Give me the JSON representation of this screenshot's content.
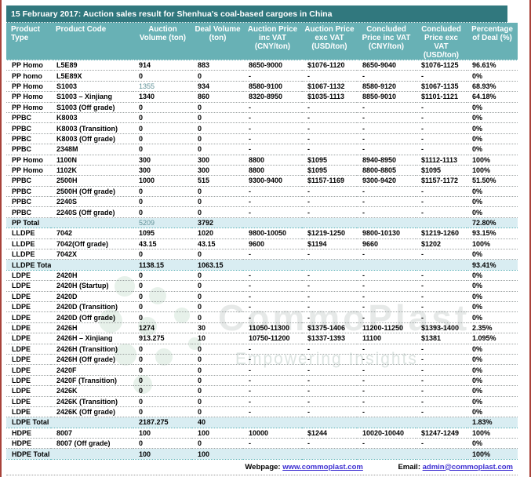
{
  "title": "15 February 2017: Auction sales result for Shenhua's coal-based cargoes in China",
  "columns": [
    "Product Type",
    "Product Code",
    "Auction Volume (ton)",
    "Deal Volume (ton)",
    "Auction Price inc VAT (CNY/ton)",
    "Auction Price exc VAT (USD/ton)",
    "Concluded Price inc VAT (CNY/ton)",
    "Concluded Price exc VAT (USD/ton)",
    "Percentage of Deal (%)"
  ],
  "rows": [
    {
      "cells": [
        "PP Homo",
        "L5E89",
        "914",
        "883",
        "8650-9000",
        "$1076-1120",
        "8650-9040",
        "$1076-1125",
        "96.61%"
      ]
    },
    {
      "cells": [
        "PP homo",
        "L5E89X",
        "0",
        "0",
        "-",
        "-",
        "-",
        "-",
        "0%"
      ]
    },
    {
      "cells": [
        "PP Homo",
        "S1003",
        "1355",
        "934",
        "8580-9100",
        "$1067-1132",
        "8580-9120",
        "$1067-1135",
        "68.93%"
      ],
      "muted": [
        2
      ]
    },
    {
      "cells": [
        "PP Homo",
        "S1003 – Xinjiang",
        "1340",
        "860",
        "8320-8950",
        "$1035-1113",
        "8850-9010",
        "$1101-1121",
        "64.18%"
      ]
    },
    {
      "cells": [
        "PP Homo",
        "S1003 (Off grade)",
        "0",
        "0",
        "-",
        "-",
        "-",
        "-",
        "0%"
      ]
    },
    {
      "cells": [
        "PPBC",
        "K8003",
        "0",
        "0",
        "-",
        "-",
        "-",
        "-",
        "0%"
      ]
    },
    {
      "cells": [
        "PPBC",
        "K8003 (Transition)",
        "0",
        "0",
        "-",
        "-",
        "-",
        "-",
        "0%"
      ]
    },
    {
      "cells": [
        "PPBC",
        "K8003 (Off grade)",
        "0",
        "0",
        "-",
        "-",
        "-",
        "-",
        "0%"
      ]
    },
    {
      "cells": [
        "PPBC",
        "2348M",
        "0",
        "0",
        "-",
        "-",
        "-",
        "-",
        "0%"
      ]
    },
    {
      "cells": [
        "PP Homo",
        "1100N",
        "300",
        "300",
        "8800",
        "$1095",
        "8940-8950",
        "$1112-1113",
        "100%"
      ]
    },
    {
      "cells": [
        "PP Homo",
        "1102K",
        "300",
        "300",
        "8800",
        "$1095",
        "8800-8805",
        "$1095",
        "100%"
      ]
    },
    {
      "cells": [
        "PPBC",
        "2500H",
        "1000",
        "515",
        "9300-9400",
        "$1157-1169",
        "9300-9420",
        "$1157-1172",
        "51.50%"
      ]
    },
    {
      "cells": [
        "PPBC",
        "2500H (Off grade)",
        "0",
        "0",
        "-",
        "-",
        "-",
        "-",
        "0%"
      ]
    },
    {
      "cells": [
        "PPBC",
        "2240S",
        "0",
        "0",
        "-",
        "-",
        "-",
        "-",
        "0%"
      ]
    },
    {
      "cells": [
        "PPBC",
        "2240S (Off grade)",
        "0",
        "0",
        "-",
        "-",
        "-",
        "-",
        "0%"
      ]
    },
    {
      "cells": [
        "PP Total",
        "",
        "5209",
        "3792",
        "",
        "",
        "",
        "",
        "72.80%"
      ],
      "total": true,
      "muted": [
        2
      ]
    },
    {
      "cells": [
        "LLDPE",
        "7042",
        "1095",
        "1020",
        "9800-10050",
        "$1219-1250",
        "9800-10130",
        "$1219-1260",
        "93.15%"
      ]
    },
    {
      "cells": [
        "LLDPE",
        "7042(Off grade)",
        "43.15",
        "43.15",
        "9600",
        "$1194",
        "9660",
        "$1202",
        "100%"
      ]
    },
    {
      "cells": [
        "LLDPE",
        "7042X",
        "0",
        "0",
        "-",
        "-",
        "-",
        "-",
        "0%"
      ]
    },
    {
      "cells": [
        "LLDPE Total",
        "",
        "1138.15",
        "1063.15",
        "",
        "",
        "",
        "",
        "93.41%"
      ],
      "total": true
    },
    {
      "cells": [
        "LDPE",
        "2420H",
        "0",
        "0",
        "-",
        "-",
        "-",
        "-",
        "0%"
      ]
    },
    {
      "cells": [
        "LDPE",
        "2420H (Startup)",
        "0",
        "0",
        "-",
        "-",
        "-",
        "-",
        "0%"
      ]
    },
    {
      "cells": [
        "LDPE",
        "2420D",
        "0",
        "0",
        "-",
        "-",
        "-",
        "-",
        "0%"
      ]
    },
    {
      "cells": [
        "LDPE",
        "2420D (Transition)",
        "0",
        "0",
        "-",
        "-",
        "-",
        "-",
        "0%"
      ]
    },
    {
      "cells": [
        "LDPE",
        "2420D (Off grade)",
        "0",
        "0",
        "-",
        "-",
        "-",
        "-",
        "0%"
      ]
    },
    {
      "cells": [
        "LDPE",
        "2426H",
        "1274",
        "30",
        "11050-11300",
        "$1375-1406",
        "11200-11250",
        "$1393-1400",
        "2.35%"
      ]
    },
    {
      "cells": [
        "LDPE",
        "2426H – Xinjiang",
        "913.275",
        "10",
        "10750-11200",
        "$1337-1393",
        "11100",
        "$1381",
        "1.095%"
      ]
    },
    {
      "cells": [
        "LDPE",
        "2426H (Transition)",
        "0",
        "0",
        "-",
        "-",
        "-",
        "-",
        "0%"
      ]
    },
    {
      "cells": [
        "LDPE",
        "2426H (Off grade)",
        "0",
        "0",
        "-",
        "-",
        "-",
        "-",
        "0%"
      ]
    },
    {
      "cells": [
        "LDPE",
        "2420F",
        "0",
        "0",
        "-",
        "-",
        "-",
        "-",
        "0%"
      ]
    },
    {
      "cells": [
        "LDPE",
        "2420F (Transition)",
        "0",
        "0",
        "-",
        "-",
        "-",
        "-",
        "0%"
      ]
    },
    {
      "cells": [
        "LDPE",
        "2426K",
        "0",
        "0",
        "-",
        "-",
        "-",
        "-",
        "0%"
      ]
    },
    {
      "cells": [
        "LDPE",
        "2426K (Transition)",
        "0",
        "0",
        "-",
        "-",
        "-",
        "-",
        "0%"
      ]
    },
    {
      "cells": [
        "LDPE",
        "2426K (Off grade)",
        "0",
        "0",
        "-",
        "-",
        "-",
        "-",
        "0%"
      ]
    },
    {
      "cells": [
        "LDPE Total",
        "",
        "2187.275",
        "40",
        "",
        "",
        "",
        "",
        "1.83%"
      ],
      "total": true
    },
    {
      "cells": [
        "HDPE",
        "8007",
        "100",
        "100",
        "10000",
        "$1244",
        "10020-10040",
        "$1247-1249",
        "100%"
      ]
    },
    {
      "cells": [
        "HDPE",
        "8007 (Off grade)",
        "0",
        "0",
        "-",
        "-",
        "-",
        "-",
        "0%"
      ]
    },
    {
      "cells": [
        "HDPE Total",
        "",
        "100",
        "100",
        "",
        "",
        "",
        "",
        "100%"
      ],
      "total": true
    }
  ],
  "footer": {
    "webpage_label": "Webpage:",
    "webpage_url": "www.commoplast.com",
    "email_label": "Email:",
    "email_value": "admin@commoplast.com"
  },
  "watermark": {
    "brand": "CommoPlast",
    "tagline": "Empowering Insights"
  },
  "colors": {
    "title-bar": "#31787e",
    "header": "#68b1b5",
    "total-row": "#d9edf2",
    "link": "#3c2ed1",
    "muted-value": "#5f9096",
    "edge-line": "#a8423a"
  }
}
